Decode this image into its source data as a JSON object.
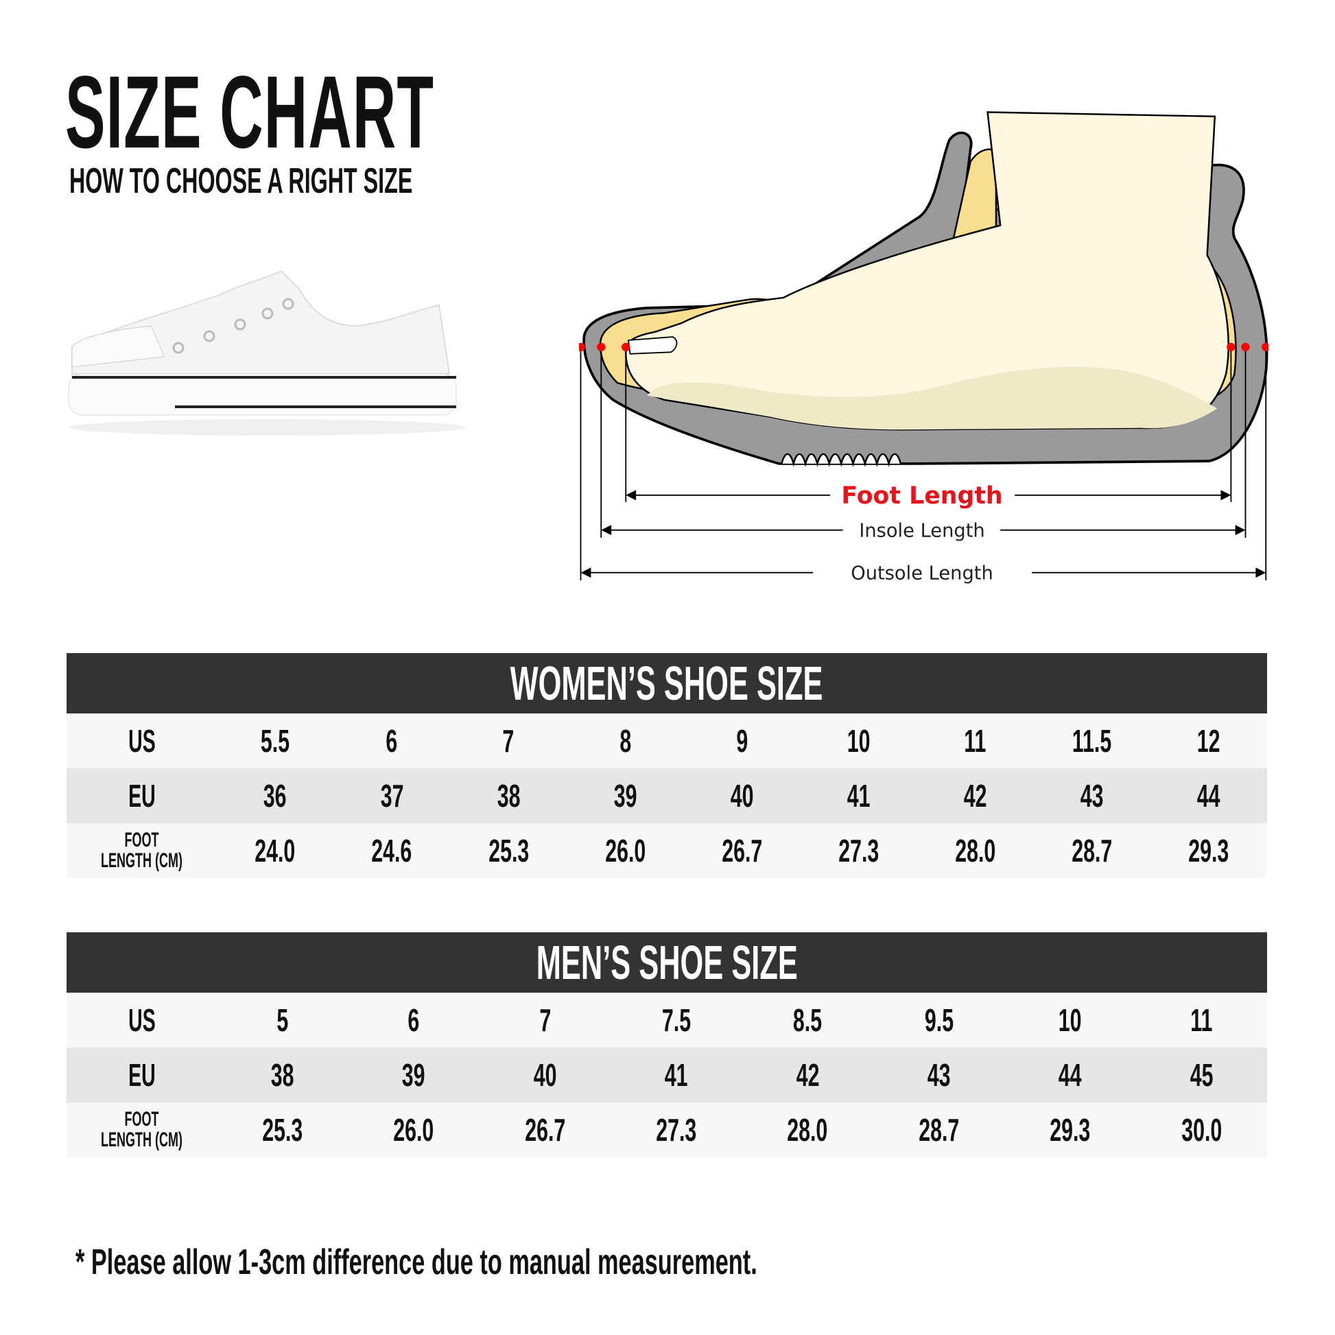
{
  "header": {
    "title": "SIZE CHART",
    "subtitle": "HOW TO CHOOSE A RIGHT SIZE"
  },
  "diagram": {
    "foot_length": "Foot Length",
    "insole_length": "Insole Length",
    "outsole_length": "Outsole Length",
    "colors": {
      "foot_length": "#e8141b",
      "marker": "#ff0000",
      "sole": "#9a9a9a",
      "insole": "#f7df8f",
      "foot": "#fdf8df"
    }
  },
  "women": {
    "title": "WOMEN’S SHOE SIZE",
    "rows": [
      {
        "label": "US",
        "values": [
          "5.5",
          "6",
          "7",
          "8",
          "9",
          "10",
          "11",
          "11.5",
          "12"
        ]
      },
      {
        "label": "EU",
        "values": [
          "36",
          "37",
          "38",
          "39",
          "40",
          "41",
          "42",
          "43",
          "44"
        ]
      },
      {
        "label_line1": "FOOT",
        "label_line2": "LENGTH (CM)",
        "values": [
          "24.0",
          "24.6",
          "25.3",
          "26.0",
          "26.7",
          "27.3",
          "28.0",
          "28.7",
          "29.3"
        ]
      }
    ]
  },
  "men": {
    "title": "MEN’S SHOE SIZE",
    "rows": [
      {
        "label": "US",
        "values": [
          "5",
          "6",
          "7",
          "7.5",
          "8.5",
          "9.5",
          "10",
          "11"
        ]
      },
      {
        "label": "EU",
        "values": [
          "38",
          "39",
          "40",
          "41",
          "42",
          "43",
          "44",
          "45"
        ]
      },
      {
        "label_line1": "FOOT",
        "label_line2": "LENGTH (CM)",
        "values": [
          "25.3",
          "26.0",
          "26.7",
          "27.3",
          "28.0",
          "28.7",
          "29.3",
          "30.0"
        ]
      }
    ]
  },
  "footnote": "* Please allow 1-3cm difference due to manual measurement."
}
